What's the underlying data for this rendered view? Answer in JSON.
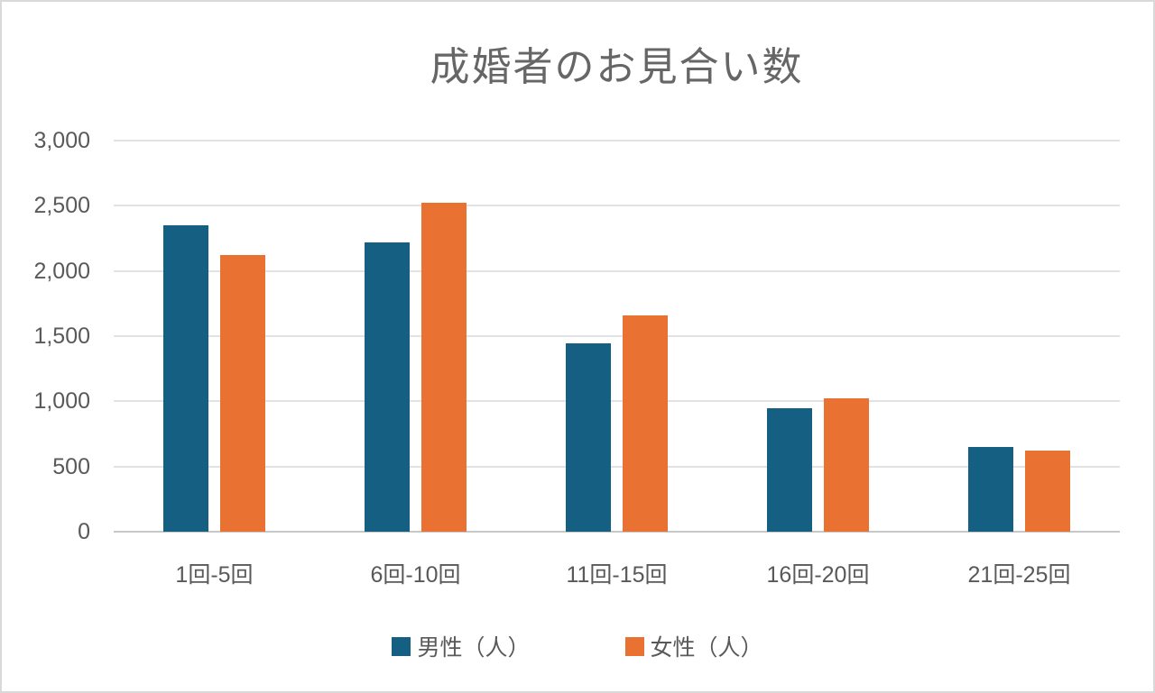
{
  "chart_data": {
    "type": "bar",
    "title": "成婚者のお見合い数",
    "categories": [
      "1回-5回",
      "6回-10回",
      "11回-15回",
      "16回-20回",
      "21回-25回"
    ],
    "series": [
      {
        "name": "男性（人）",
        "color": "#156082",
        "values": [
          2350,
          2220,
          1445,
          945,
          650
        ]
      },
      {
        "name": "女性（人）",
        "color": "#E97132",
        "values": [
          2125,
          2520,
          1660,
          1025,
          625
        ]
      }
    ],
    "ylim": [
      0,
      3000
    ],
    "ytick_step": 500,
    "yticks": [
      {
        "value": 0,
        "label": "0"
      },
      {
        "value": 500,
        "label": "500"
      },
      {
        "value": 1000,
        "label": "1,000"
      },
      {
        "value": 1500,
        "label": "1,500"
      },
      {
        "value": 2000,
        "label": "2,000"
      },
      {
        "value": 2500,
        "label": "2,500"
      },
      {
        "value": 3000,
        "label": "3,000"
      }
    ],
    "grid": true,
    "legend_position": "bottom",
    "colors": {
      "title_text": "#666666",
      "axis_text": "#595959",
      "gridline": "#E2E2E2",
      "axis_line": "#C8C8C8",
      "background": "#FFFFFF",
      "frame_border": "#D9D9D9"
    }
  }
}
